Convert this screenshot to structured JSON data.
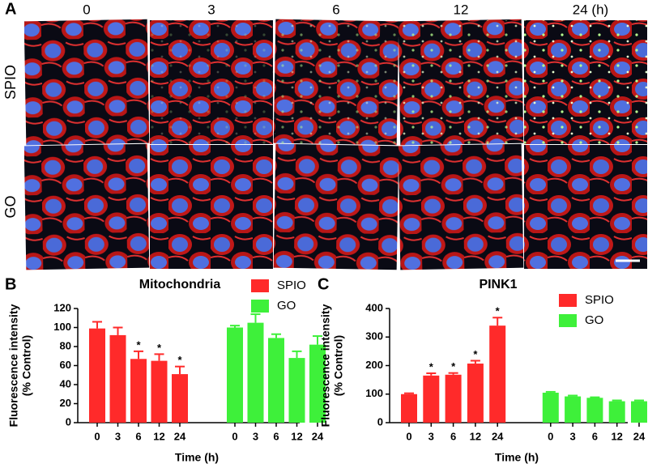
{
  "panel_a": {
    "panel": "A",
    "columns": [
      "0",
      "3",
      "6",
      "12",
      "24 (h)"
    ],
    "rows": [
      "SPIO",
      "GO"
    ]
  },
  "chart_data": [
    {
      "type": "bar",
      "panel": "B",
      "title": "Mitochondria",
      "xlabel": "Time (h)",
      "ylabel": [
        "Fluorescence intensity",
        "(% Control)"
      ],
      "categories": [
        "0",
        "3",
        "6",
        "12",
        "24",
        "0",
        "3",
        "6",
        "12",
        "24"
      ],
      "series": [
        {
          "name": "SPIO",
          "color": "#ff2a2a",
          "values": [
            99,
            92,
            67,
            65,
            51,
            null,
            null,
            null,
            null,
            null
          ],
          "errors": [
            7,
            8,
            8,
            7,
            8,
            null,
            null,
            null,
            null,
            null
          ],
          "annotations": [
            null,
            null,
            "*",
            "*",
            "*",
            null,
            null,
            null,
            null,
            null
          ]
        },
        {
          "name": "GO",
          "color": "#3ef03a",
          "values": [
            null,
            null,
            null,
            null,
            null,
            100,
            105,
            89,
            68,
            82
          ],
          "errors": [
            null,
            null,
            null,
            null,
            null,
            2,
            9,
            4,
            7,
            9
          ],
          "annotations": [
            null,
            null,
            null,
            null,
            null,
            null,
            null,
            null,
            null,
            null
          ]
        }
      ],
      "ylim": [
        0,
        120
      ],
      "yticks": [
        0,
        20,
        40,
        60,
        80,
        100,
        120
      ],
      "grid": false
    },
    {
      "type": "bar",
      "panel": "C",
      "title": "PINK1",
      "xlabel": "Time (h)",
      "ylabel": [
        "Fluorescence intensity",
        "(% Control)"
      ],
      "categories": [
        "0",
        "3",
        "6",
        "12",
        "24",
        "0",
        "3",
        "6",
        "12",
        "24"
      ],
      "series": [
        {
          "name": "SPIO",
          "color": "#ff2a2a",
          "values": [
            100,
            165,
            168,
            207,
            340,
            null,
            null,
            null,
            null,
            null
          ],
          "errors": [
            3,
            8,
            6,
            10,
            28,
            null,
            null,
            null,
            null,
            null
          ],
          "annotations": [
            null,
            "*",
            "*",
            "*",
            "*",
            null,
            null,
            null,
            null,
            null
          ]
        },
        {
          "name": "GO",
          "color": "#3ef03a",
          "values": [
            null,
            null,
            null,
            null,
            null,
            105,
            92,
            87,
            75,
            75
          ],
          "errors": [
            null,
            null,
            null,
            null,
            null,
            3,
            3,
            2,
            3,
            3
          ],
          "annotations": [
            null,
            null,
            null,
            null,
            null,
            null,
            null,
            null,
            null,
            null
          ]
        }
      ],
      "ylim": [
        0,
        400
      ],
      "yticks": [
        0,
        100,
        200,
        300,
        400
      ],
      "grid": false
    }
  ]
}
